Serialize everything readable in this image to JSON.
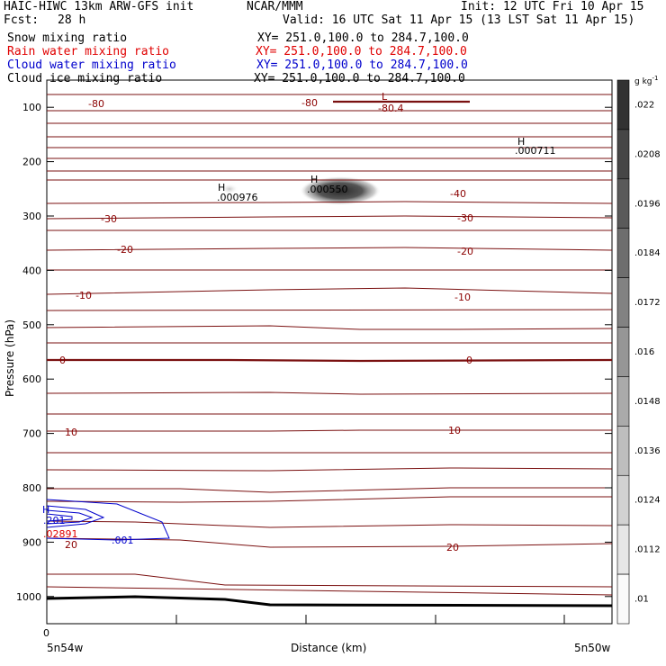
{
  "header": {
    "model": "HAIC-HIWC 13km ARW-GFS init",
    "org": "NCAR/MMM",
    "init": "Init: 12 UTC Fri 10 Apr 15",
    "fcst_label": "Fcst:",
    "fcst_value": "28 h",
    "valid": "Valid: 16 UTC Sat 11 Apr 15 (13 LST Sat 11 Apr 15)"
  },
  "fields": [
    {
      "name": "Snow mixing ratio",
      "xy": "XY= 251.0,100.0 to 284.7,100.0",
      "color": "#000000"
    },
    {
      "name": "Rain water mixing ratio",
      "xy": "XY= 251.0,100.0 to 284.7,100.0",
      "color": "#e00000"
    },
    {
      "name": "Cloud water mixing ratio",
      "xy": "XY= 251.0,100.0 to 284.7,100.0",
      "color": "#0000cc"
    },
    {
      "name": "Cloud ice mixing ratio",
      "xy": "XY= 251.0,100.0 to 284.7,100.0",
      "color": "#000000"
    }
  ],
  "chart_data": {
    "type": "cross-section contour",
    "xlabel": "Distance (km)",
    "ylabel": "Pressure (hPa)",
    "x_tick_labels": [
      "0"
    ],
    "x_endpoints": [
      "5n54w",
      "5n50w"
    ],
    "y_ticks": [
      100,
      200,
      300,
      400,
      500,
      600,
      700,
      800,
      900,
      1000
    ],
    "y_scale": "linear, inverted",
    "ylim": [
      1050,
      50
    ],
    "colorbar": {
      "unit": "g kg",
      "unit_exp": "-1",
      "labels": [
        ".022",
        ".0208",
        ".0196",
        ".0184",
        ".0172",
        ".016",
        ".0148",
        ".0136",
        ".0124",
        ".0112",
        ".01"
      ]
    },
    "temperature_labels": [
      {
        "text": "-80",
        "color": "#8b0000"
      },
      {
        "text": "-80",
        "color": "#8b0000"
      },
      {
        "text": "-80.4",
        "color": "#8b0000"
      },
      {
        "text": "-40",
        "color": "#8b0000"
      },
      {
        "text": "-30",
        "color": "#8b0000"
      },
      {
        "text": "-30",
        "color": "#8b0000"
      },
      {
        "text": "-20",
        "color": "#8b0000"
      },
      {
        "text": "-20",
        "color": "#8b0000"
      },
      {
        "text": "-10",
        "color": "#8b0000"
      },
      {
        "text": "-10",
        "color": "#8b0000"
      },
      {
        "text": "0",
        "color": "#8b0000"
      },
      {
        "text": "0",
        "color": "#8b0000"
      },
      {
        "text": "10",
        "color": "#8b0000"
      },
      {
        "text": "10",
        "color": "#8b0000"
      },
      {
        "text": "20",
        "color": "#8b0000"
      },
      {
        "text": "20",
        "color": "#8b0000"
      }
    ],
    "extrema": [
      {
        "kind": "L",
        "value": "-80.4",
        "color": "#8b0000"
      },
      {
        "kind": "H",
        "value": ".000711",
        "color": "#000000"
      },
      {
        "kind": "H",
        "value": ".000976",
        "color": "#000000"
      },
      {
        "kind": "H",
        "value": ".000550",
        "color": "#000000"
      },
      {
        "kind": "H",
        "value": ".201",
        "color": "#0000cc"
      },
      {
        "kind": "",
        "value": ".02891",
        "color": "#e00000"
      }
    ],
    "cloud_water_label": ".001"
  }
}
